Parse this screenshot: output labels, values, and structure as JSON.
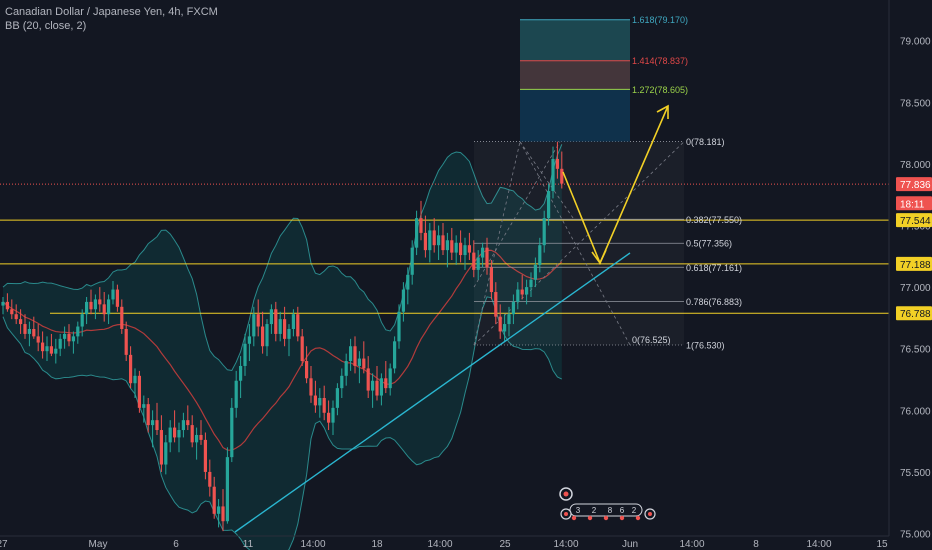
{
  "header": {
    "symbol_title": "Canadian Dollar / Japanese Yen, 4h, FXCM",
    "indicator": "BB (20, close, 2)"
  },
  "colors": {
    "background": "#131722",
    "up_candle": "#26a69a",
    "down_candle": "#ef5350",
    "bb_band": "#2a8a8c",
    "bb_fill": "#0f3a40",
    "bb_basis": "#b23b3b",
    "horizontal_level": "#f2d026",
    "trendline": "#2ab6d0",
    "arrow": "#f2d026",
    "price_line": "#ef5350",
    "axis_text": "#b2b5be"
  },
  "chart_data": {
    "type": "candlestick",
    "symbol": "CADJPY",
    "timeframe": "4h",
    "ylim": [
      74.98,
      79.33
    ],
    "y_ticks": [
      "79.000",
      "78.500",
      "78.000",
      "77.500",
      "77.000",
      "76.500",
      "76.000",
      "75.500",
      "75.000"
    ],
    "x_ticks": [
      "27",
      "May",
      "6",
      "11",
      "14:00",
      "18",
      "14:00",
      "25",
      "14:00",
      "Jun",
      "14:00",
      "8",
      "14:00",
      "15"
    ],
    "price_badges": [
      {
        "label": "77.836",
        "value": 77.836,
        "color": "#ef5350"
      },
      {
        "label": "18:11",
        "value": 77.68,
        "color": "#ef5350"
      },
      {
        "label": "77.544",
        "value": 77.544,
        "color": "#f2d026"
      },
      {
        "label": "77.188",
        "value": 77.188,
        "color": "#f2d026"
      },
      {
        "label": "76.788",
        "value": 76.788,
        "color": "#f2d026"
      }
    ],
    "horizontal_levels": [
      77.544,
      77.188,
      76.788
    ],
    "current_price": 77.836,
    "fib_retracement": {
      "levels": [
        {
          "label": "0(78.181)",
          "value": 78.181
        },
        {
          "label": "0.382(77.550)",
          "value": 77.55
        },
        {
          "label": "0.5(77.356)",
          "value": 77.356
        },
        {
          "label": "0.618(77.161)",
          "value": 77.161
        },
        {
          "label": "0.786(76.883)",
          "value": 76.883
        },
        {
          "label": "1(76.530)",
          "value": 76.53
        }
      ],
      "start_label": "0(76.525)"
    },
    "fib_extension": [
      {
        "label": "1.618(79.170)",
        "value": 79.17,
        "color": "#3fa8c0"
      },
      {
        "label": "1.414(78.837)",
        "value": 78.837,
        "color": "#e04848"
      },
      {
        "label": "1.272(78.605)",
        "value": 78.605,
        "color": "#9bd24a"
      }
    ],
    "candles": [
      [
        76.85,
        76.92,
        76.78,
        76.88
      ],
      [
        76.88,
        76.95,
        76.8,
        76.82
      ],
      [
        76.82,
        76.9,
        76.74,
        76.78
      ],
      [
        76.78,
        76.86,
        76.7,
        76.74
      ],
      [
        76.74,
        76.82,
        76.62,
        76.7
      ],
      [
        76.7,
        76.78,
        76.58,
        76.62
      ],
      [
        76.62,
        76.72,
        76.52,
        76.66
      ],
      [
        76.66,
        76.76,
        76.58,
        76.6
      ],
      [
        76.6,
        76.7,
        76.48,
        76.55
      ],
      [
        76.55,
        76.64,
        76.42,
        76.48
      ],
      [
        76.48,
        76.6,
        76.4,
        76.52
      ],
      [
        76.52,
        76.62,
        76.44,
        76.46
      ],
      [
        76.46,
        76.58,
        76.38,
        76.5
      ],
      [
        76.5,
        76.62,
        76.44,
        76.58
      ],
      [
        76.58,
        76.68,
        76.5,
        76.62
      ],
      [
        76.62,
        76.7,
        76.52,
        76.56
      ],
      [
        76.56,
        76.64,
        76.46,
        76.6
      ],
      [
        76.6,
        76.72,
        76.54,
        76.68
      ],
      [
        76.68,
        76.82,
        76.6,
        76.78
      ],
      [
        76.78,
        76.92,
        76.7,
        76.88
      ],
      [
        76.88,
        76.98,
        76.78,
        76.82
      ],
      [
        76.82,
        76.94,
        76.74,
        76.9
      ],
      [
        76.9,
        77.0,
        76.8,
        76.86
      ],
      [
        76.86,
        76.96,
        76.72,
        76.78
      ],
      [
        76.78,
        76.94,
        76.7,
        76.9
      ],
      [
        76.9,
        77.05,
        76.86,
        76.98
      ],
      [
        76.98,
        77.02,
        76.8,
        76.84
      ],
      [
        76.84,
        76.9,
        76.62,
        76.66
      ],
      [
        76.66,
        76.72,
        76.4,
        76.45
      ],
      [
        76.45,
        76.52,
        76.18,
        76.22
      ],
      [
        76.22,
        76.34,
        76.1,
        76.28
      ],
      [
        76.28,
        76.32,
        75.98,
        76.02
      ],
      [
        76.02,
        76.12,
        75.9,
        76.05
      ],
      [
        76.05,
        76.1,
        75.82,
        75.88
      ],
      [
        75.88,
        76.0,
        75.7,
        75.92
      ],
      [
        75.92,
        76.06,
        75.8,
        75.84
      ],
      [
        75.84,
        75.96,
        75.5,
        75.56
      ],
      [
        75.56,
        75.8,
        75.48,
        75.74
      ],
      [
        75.74,
        75.92,
        75.66,
        75.86
      ],
      [
        75.86,
        76.0,
        75.74,
        75.78
      ],
      [
        75.78,
        75.9,
        75.66,
        75.84
      ],
      [
        75.84,
        75.98,
        75.78,
        75.92
      ],
      [
        75.92,
        76.04,
        75.84,
        75.88
      ],
      [
        75.88,
        75.96,
        75.7,
        75.74
      ],
      [
        75.74,
        75.86,
        75.6,
        75.8
      ],
      [
        75.8,
        75.92,
        75.72,
        75.76
      ],
      [
        75.76,
        75.82,
        75.44,
        75.5
      ],
      [
        75.5,
        75.6,
        75.3,
        75.38
      ],
      [
        75.38,
        75.46,
        75.12,
        75.16
      ],
      [
        75.16,
        75.28,
        75.05,
        75.22
      ],
      [
        75.22,
        75.36,
        75.02,
        75.1
      ],
      [
        75.1,
        75.7,
        75.08,
        75.62
      ],
      [
        75.62,
        76.1,
        75.58,
        76.02
      ],
      [
        76.02,
        76.32,
        75.94,
        76.24
      ],
      [
        76.24,
        76.44,
        76.1,
        76.36
      ],
      [
        76.36,
        76.62,
        76.28,
        76.54
      ],
      [
        76.54,
        76.7,
        76.4,
        76.6
      ],
      [
        76.6,
        76.84,
        76.52,
        76.78
      ],
      [
        76.78,
        76.9,
        76.6,
        76.68
      ],
      [
        76.68,
        76.8,
        76.46,
        76.52
      ],
      [
        76.52,
        76.74,
        76.44,
        76.7
      ],
      [
        76.7,
        76.86,
        76.62,
        76.82
      ],
      [
        76.82,
        76.88,
        76.56,
        76.62
      ],
      [
        76.62,
        76.8,
        76.56,
        76.74
      ],
      [
        76.74,
        76.84,
        76.52,
        76.58
      ],
      [
        76.58,
        76.7,
        76.44,
        76.66
      ],
      [
        76.66,
        76.82,
        76.6,
        76.78
      ],
      [
        76.78,
        76.84,
        76.56,
        76.6
      ],
      [
        76.6,
        76.66,
        76.36,
        76.4
      ],
      [
        76.4,
        76.52,
        76.22,
        76.26
      ],
      [
        76.26,
        76.36,
        76.06,
        76.12
      ],
      [
        76.12,
        76.24,
        75.98,
        76.04
      ],
      [
        76.04,
        76.18,
        75.94,
        76.1
      ],
      [
        76.1,
        76.2,
        75.92,
        75.98
      ],
      [
        75.98,
        76.08,
        75.84,
        75.9
      ],
      [
        75.9,
        76.08,
        75.8,
        76.02
      ],
      [
        76.02,
        76.22,
        75.96,
        76.18
      ],
      [
        76.18,
        76.34,
        76.1,
        76.28
      ],
      [
        76.28,
        76.46,
        76.2,
        76.4
      ],
      [
        76.4,
        76.58,
        76.32,
        76.52
      ],
      [
        76.52,
        76.6,
        76.3,
        76.36
      ],
      [
        76.36,
        76.48,
        76.22,
        76.42
      ],
      [
        76.42,
        76.56,
        76.3,
        76.34
      ],
      [
        76.34,
        76.44,
        76.1,
        76.16
      ],
      [
        76.16,
        76.3,
        76.02,
        76.24
      ],
      [
        76.24,
        76.36,
        76.08,
        76.12
      ],
      [
        76.12,
        76.3,
        76.04,
        76.26
      ],
      [
        76.26,
        76.4,
        76.14,
        76.18
      ],
      [
        76.18,
        76.38,
        76.12,
        76.34
      ],
      [
        76.34,
        76.6,
        76.3,
        76.56
      ],
      [
        76.56,
        76.86,
        76.5,
        76.8
      ],
      [
        76.8,
        77.04,
        76.72,
        76.98
      ],
      [
        76.98,
        77.16,
        76.86,
        77.1
      ],
      [
        77.1,
        77.38,
        77.02,
        77.32
      ],
      [
        77.32,
        77.62,
        77.26,
        77.56
      ],
      [
        77.56,
        77.7,
        77.38,
        77.44
      ],
      [
        77.44,
        77.58,
        77.24,
        77.3
      ],
      [
        77.3,
        77.52,
        77.2,
        77.46
      ],
      [
        77.46,
        77.56,
        77.28,
        77.34
      ],
      [
        77.34,
        77.5,
        77.22,
        77.42
      ],
      [
        77.42,
        77.52,
        77.26,
        77.3
      ],
      [
        77.3,
        77.44,
        77.16,
        77.38
      ],
      [
        77.38,
        77.48,
        77.22,
        77.28
      ],
      [
        77.28,
        77.42,
        77.18,
        77.36
      ],
      [
        77.36,
        77.46,
        77.2,
        77.26
      ],
      [
        77.26,
        77.4,
        77.14,
        77.34
      ],
      [
        77.34,
        77.44,
        77.22,
        77.28
      ],
      [
        77.28,
        77.38,
        77.08,
        77.14
      ],
      [
        77.14,
        77.3,
        77.06,
        77.24
      ],
      [
        77.24,
        77.36,
        77.16,
        77.32
      ],
      [
        77.32,
        77.4,
        77.1,
        77.16
      ],
      [
        77.16,
        77.22,
        76.9,
        76.96
      ],
      [
        76.96,
        77.04,
        76.7,
        76.76
      ],
      [
        76.76,
        76.86,
        76.58,
        76.64
      ],
      [
        76.64,
        76.78,
        76.56,
        76.7
      ],
      [
        76.7,
        76.84,
        76.6,
        76.78
      ],
      [
        76.78,
        76.94,
        76.7,
        76.88
      ],
      [
        76.88,
        77.04,
        76.82,
        76.98
      ],
      [
        76.98,
        77.1,
        76.9,
        76.94
      ],
      [
        76.94,
        77.06,
        76.86,
        77.0
      ],
      [
        77.0,
        77.12,
        76.92,
        77.06
      ],
      [
        77.06,
        77.24,
        77.0,
        77.18
      ],
      [
        77.18,
        77.4,
        77.12,
        77.34
      ],
      [
        77.34,
        77.62,
        77.28,
        77.56
      ],
      [
        77.56,
        77.84,
        77.5,
        77.78
      ],
      [
        77.78,
        78.14,
        77.72,
        78.04
      ],
      [
        78.04,
        78.18,
        77.88,
        77.96
      ],
      [
        77.96,
        78.1,
        77.8,
        77.84
      ]
    ]
  },
  "footer": {
    "event_icons": [
      "3",
      "2",
      "8",
      "6",
      "2"
    ]
  }
}
